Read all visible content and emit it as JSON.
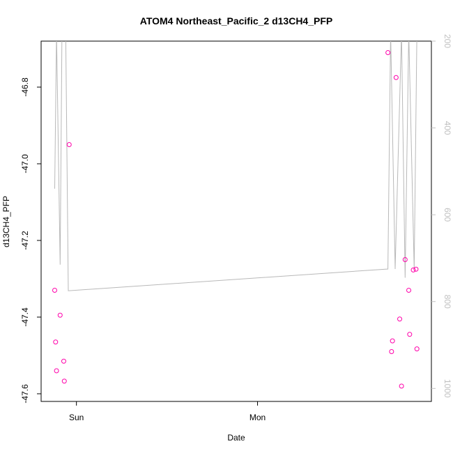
{
  "chart_data": {
    "type": "scatter",
    "title": "ATOM4 Northeast_Pacific_2 d13CH4_PFP",
    "xlabel": "Date",
    "ylabel": "d13CH4_PFP",
    "x_ticks": [
      "Sun",
      "Mon"
    ],
    "y_ticks": [
      "-46.8",
      "-47.0",
      "-47.2",
      "-47.4",
      "-47.6"
    ],
    "y_tick_values": [
      -46.8,
      -47.0,
      -47.2,
      -47.4,
      -47.6
    ],
    "ylim": [
      -47.62,
      -46.68
    ],
    "xlim": [
      -0.195,
      1.96
    ],
    "y2_ticks": [
      "200",
      "400",
      "600",
      "800",
      "1000"
    ],
    "y2_tick_values": [
      200,
      400,
      600,
      800,
      1000
    ],
    "y2lim": [
      1030,
      200
    ],
    "colors": {
      "points": "#ff00aa",
      "line": "#b8b8b8",
      "axis": "#000000",
      "right_axis": "#c0c0c0"
    },
    "series": [
      {
        "values": [
          {
            "x": -0.12,
            "y": -47.33
          },
          {
            "x": -0.115,
            "y": -47.465
          },
          {
            "x": -0.11,
            "y": -47.54
          },
          {
            "x": -0.09,
            "y": -47.395
          },
          {
            "x": -0.07,
            "y": -47.515
          },
          {
            "x": -0.067,
            "y": -47.567
          },
          {
            "x": -0.04,
            "y": -46.95
          },
          {
            "x": 1.72,
            "y": -46.71
          },
          {
            "x": 1.74,
            "y": -47.49
          },
          {
            "x": 1.745,
            "y": -47.462
          },
          {
            "x": 1.765,
            "y": -46.775
          },
          {
            "x": 1.785,
            "y": -47.405
          },
          {
            "x": 1.795,
            "y": -47.58
          },
          {
            "x": 1.815,
            "y": -47.25
          },
          {
            "x": 1.835,
            "y": -47.33
          },
          {
            "x": 1.84,
            "y": -47.445
          },
          {
            "x": 1.86,
            "y": -47.277
          },
          {
            "x": 1.875,
            "y": -47.275
          },
          {
            "x": 1.88,
            "y": -47.483
          }
        ]
      },
      {
        "axis": "right",
        "values": [
          {
            "x": -0.12,
            "y": 540
          },
          {
            "x": -0.11,
            "y": 180
          },
          {
            "x": -0.09,
            "y": 715
          },
          {
            "x": -0.08,
            "y": 180
          },
          {
            "x": -0.06,
            "y": 150
          },
          {
            "x": -0.045,
            "y": 775
          },
          {
            "x": 1.72,
            "y": 725
          },
          {
            "x": 1.735,
            "y": 180
          },
          {
            "x": 1.76,
            "y": 725
          },
          {
            "x": 1.795,
            "y": 180
          },
          {
            "x": 1.815,
            "y": 745
          },
          {
            "x": 1.835,
            "y": 180
          },
          {
            "x": 1.865,
            "y": 725
          },
          {
            "x": 1.88,
            "y": 180
          }
        ]
      }
    ]
  }
}
